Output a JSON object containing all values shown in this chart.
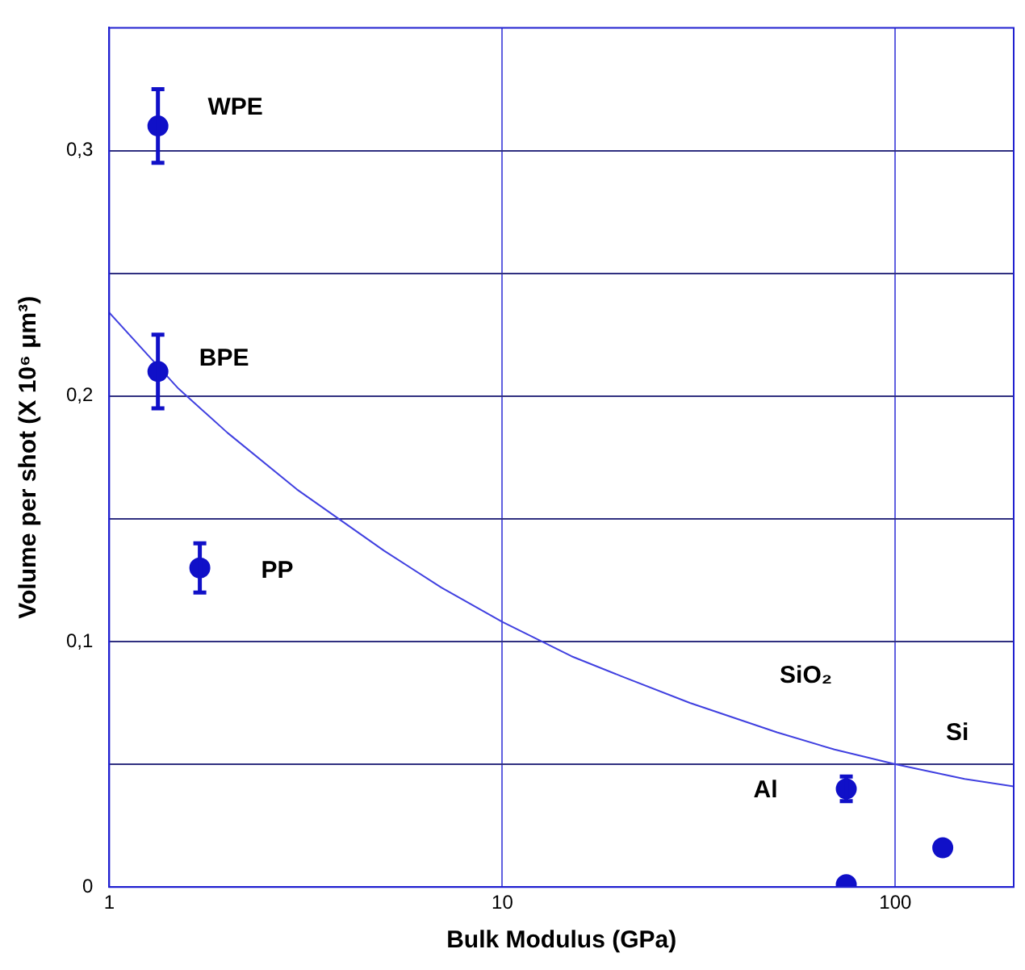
{
  "chart_data": {
    "type": "scatter",
    "xlabel": "Bulk Modulus (GPa)",
    "ylabel": "Volume per shot (X 10⁶ μm³)",
    "log": "x",
    "xlim": [
      1,
      200
    ],
    "xticks": [
      1,
      10,
      100
    ],
    "ylim": [
      0,
      0.35
    ],
    "yticks": [
      0,
      {
        "value": 0.05,
        "label": null
      },
      {
        "value": 0.1,
        "label": "0,1"
      },
      {
        "value": 0.15,
        "label": null
      },
      {
        "value": 0.2,
        "label": "0,2"
      },
      {
        "value": 0.25,
        "label": null
      },
      {
        "value": 0.3,
        "label": "0,3"
      }
    ],
    "grid": true,
    "legend": false,
    "marker": "circle",
    "series": [
      {
        "color": "#1010c8",
        "x": [
          1.33,
          1.33,
          1.7,
          75,
          75,
          132
        ],
        "values": [
          0.31,
          0.21,
          0.13,
          0.04,
          0.001,
          0.016
        ],
        "errors": [
          0.015,
          0.015,
          0.01,
          0.005,
          null,
          null
        ]
      },
      {
        "type": "line",
        "color": "#4040e0",
        "marker": "none",
        "x": [
          1,
          1.5,
          2,
          3,
          5,
          7,
          10,
          15,
          20,
          30,
          50,
          70,
          100,
          150,
          200
        ],
        "values": [
          0.234,
          0.203,
          0.185,
          0.162,
          0.137,
          0.122,
          0.108,
          0.094,
          0.086,
          0.075,
          0.063,
          0.056,
          0.05,
          0.044,
          0.041
        ]
      }
    ],
    "annotations": [
      "WPE",
      "BPE",
      "PP",
      "SiO₂",
      "Al",
      "Si"
    ]
  }
}
